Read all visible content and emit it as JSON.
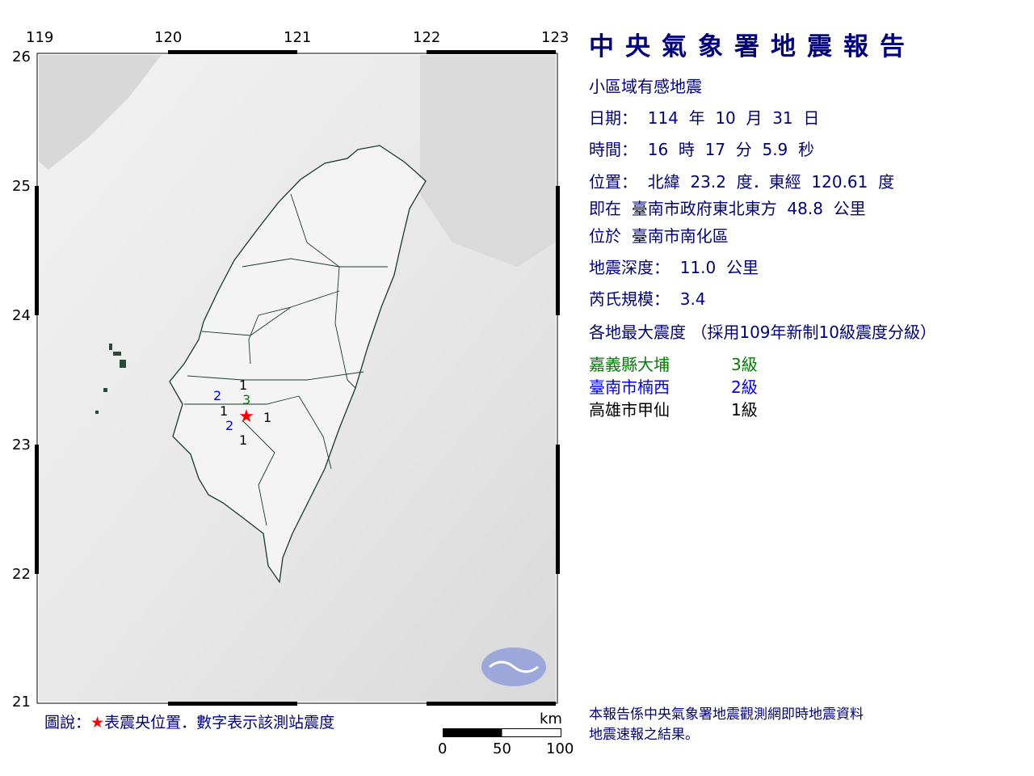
{
  "title": "中央氣象署地震報告",
  "report_type": "小區域有感地震",
  "date_line": "日期：  114  年  10  月  31  日",
  "time_line": "時間：  16  時  17  分  5.9  秒",
  "position_line": "位置：  北緯  23.2  度．東經  120.61  度",
  "relative_line": "即在  臺南市政府東北東方  48.8  公里",
  "located_line": "位於  臺南市南化區",
  "depth_line": "地震深度：  11.0  公里",
  "magnitude_line": "芮氏規模：  3.4",
  "intensity_header": "各地最大震度 （採用109年新制10級震度分級）",
  "intensities": [
    {
      "station": "嘉義縣大埔",
      "level": "3級",
      "color": "#008000"
    },
    {
      "station": "臺南市楠西",
      "level": "2級",
      "color": "#0000ff"
    },
    {
      "station": "高雄市甲仙",
      "level": "1級",
      "color": "#000000"
    }
  ],
  "footer": "本報告係中央氣象署地震觀測網即時地震資料\n地震速報之結果。",
  "map": {
    "lon_ticks": [
      "119",
      "120",
      "121",
      "122",
      "123"
    ],
    "lat_ticks": [
      "26",
      "25",
      "24",
      "23",
      "22",
      "21"
    ],
    "legend_prefix": "圖說：",
    "legend_star": "★",
    "legend_text": "表震央位置．數字表示該測站震度",
    "scale_unit": "km",
    "scale_labels": [
      "0",
      "50",
      "100"
    ],
    "epicenter": {
      "lat": 23.2,
      "lon": 120.61,
      "color": "#ff0000"
    },
    "station_marks": [
      {
        "label": "1",
        "color": "#000000"
      },
      {
        "label": "2",
        "color": "#0000ff"
      },
      {
        "label": "1",
        "color": "#000000"
      },
      {
        "label": "2",
        "color": "#0000ff"
      },
      {
        "label": "3",
        "color": "#008000"
      },
      {
        "label": "1",
        "color": "#000000"
      },
      {
        "label": "1",
        "color": "#000000"
      }
    ]
  }
}
